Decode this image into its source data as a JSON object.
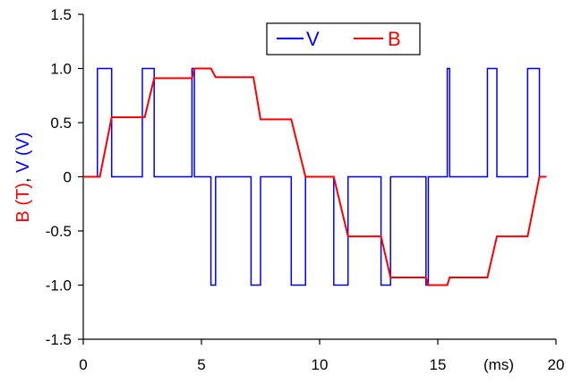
{
  "chart_data": {
    "type": "line",
    "xlabel_unit": "(ms)",
    "ylabel_parts": [
      {
        "text": "B (T)",
        "color": "#ff0000"
      },
      {
        "text": ", ",
        "color": "#000000"
      },
      {
        "text": "V (V)",
        "color": "#0000ff"
      }
    ],
    "xlim": [
      0,
      20
    ],
    "ylim": [
      -1.5,
      1.5
    ],
    "x_ticks": [
      0,
      5,
      10,
      15,
      20
    ],
    "x_tick_labels": [
      "0",
      "5",
      "10",
      "15",
      "20"
    ],
    "y_ticks": [
      1.5,
      1.0,
      0.5,
      0,
      -0.5,
      -1.0,
      -1.5
    ],
    "y_tick_labels": [
      "1.5",
      "1.0",
      "0.5",
      "0",
      "-0.5",
      "-1.0",
      "-1.5"
    ],
    "grid": false,
    "legend_position": "top-center",
    "series": [
      {
        "name": "V",
        "color": "#0000ff",
        "points": [
          [
            0,
            0
          ],
          [
            0.6,
            0
          ],
          [
            0.6,
            1
          ],
          [
            1.2,
            1
          ],
          [
            1.2,
            0
          ],
          [
            2.5,
            0
          ],
          [
            2.5,
            1
          ],
          [
            3.0,
            1
          ],
          [
            3.0,
            0
          ],
          [
            4.6,
            0
          ],
          [
            4.6,
            1
          ],
          [
            4.7,
            1
          ],
          [
            4.7,
            0
          ],
          [
            5.4,
            0
          ],
          [
            5.4,
            -1
          ],
          [
            5.6,
            -1
          ],
          [
            5.6,
            0
          ],
          [
            7.1,
            0
          ],
          [
            7.1,
            -1
          ],
          [
            7.5,
            -1
          ],
          [
            7.5,
            0
          ],
          [
            8.8,
            0
          ],
          [
            8.8,
            -1
          ],
          [
            9.4,
            -1
          ],
          [
            9.4,
            0
          ],
          [
            10.6,
            0
          ],
          [
            10.6,
            -1
          ],
          [
            11.2,
            -1
          ],
          [
            11.2,
            0
          ],
          [
            12.6,
            0
          ],
          [
            12.6,
            -1
          ],
          [
            13.0,
            -1
          ],
          [
            13.0,
            0
          ],
          [
            14.5,
            0
          ],
          [
            14.5,
            -1
          ],
          [
            14.6,
            -1
          ],
          [
            14.6,
            0
          ],
          [
            15.4,
            0
          ],
          [
            15.4,
            1
          ],
          [
            15.5,
            1
          ],
          [
            15.5,
            0
          ],
          [
            17.1,
            0
          ],
          [
            17.1,
            1
          ],
          [
            17.5,
            1
          ],
          [
            17.5,
            0
          ],
          [
            18.8,
            0
          ],
          [
            18.8,
            1
          ],
          [
            19.3,
            1
          ],
          [
            19.3,
            0
          ]
        ]
      },
      {
        "name": "B",
        "color": "#ff0000",
        "points": [
          [
            0,
            0
          ],
          [
            0.7,
            0
          ],
          [
            1.2,
            0.55
          ],
          [
            2.6,
            0.55
          ],
          [
            3.0,
            0.91
          ],
          [
            4.6,
            0.91
          ],
          [
            4.7,
            1.0
          ],
          [
            5.4,
            1.0
          ],
          [
            5.6,
            0.92
          ],
          [
            7.2,
            0.92
          ],
          [
            7.5,
            0.53
          ],
          [
            8.8,
            0.53
          ],
          [
            9.4,
            0
          ],
          [
            10.6,
            0
          ],
          [
            11.2,
            -0.55
          ],
          [
            12.6,
            -0.55
          ],
          [
            13.0,
            -0.93
          ],
          [
            14.5,
            -0.93
          ],
          [
            14.6,
            -1.0
          ],
          [
            15.4,
            -1.0
          ],
          [
            15.5,
            -0.93
          ],
          [
            17.1,
            -0.93
          ],
          [
            17.5,
            -0.55
          ],
          [
            18.8,
            -0.55
          ],
          [
            19.3,
            0
          ],
          [
            19.6,
            0
          ]
        ]
      }
    ]
  }
}
